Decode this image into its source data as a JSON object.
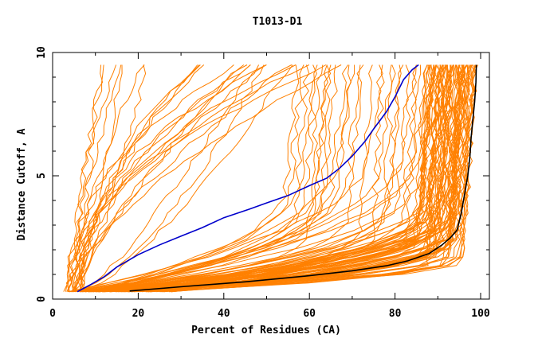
{
  "chart_data": {
    "type": "line",
    "title": "T1013-D1",
    "xlabel": "Percent of Residues (CA)",
    "ylabel": "Distance Cutoff, A",
    "xlim": [
      0,
      100
    ],
    "ylim": [
      0,
      10
    ],
    "x_ticks": [
      0,
      20,
      40,
      60,
      80,
      100
    ],
    "y_ticks": [
      0,
      5,
      10
    ],
    "x_tick_labels": [
      "0",
      "20",
      "40",
      "60",
      "80",
      "100"
    ],
    "y_tick_labels": [
      "0",
      "5",
      "10"
    ],
    "grid": false,
    "bundle": {
      "name": "all models",
      "color": "#ff8000",
      "count": 130,
      "y_min": 0.3,
      "y_max": 9.5
    },
    "highlight_series": [
      {
        "name": "blue model",
        "color": "#0000cc",
        "points": [
          [
            5.8,
            0.3
          ],
          [
            9,
            0.6
          ],
          [
            12,
            0.9
          ],
          [
            15,
            1.3
          ],
          [
            20,
            1.8
          ],
          [
            25,
            2.2
          ],
          [
            30,
            2.55
          ],
          [
            35,
            2.9
          ],
          [
            40,
            3.3
          ],
          [
            46,
            3.65
          ],
          [
            50,
            3.9
          ],
          [
            55,
            4.2
          ],
          [
            60,
            4.6
          ],
          [
            64,
            4.9
          ],
          [
            67,
            5.3
          ],
          [
            70,
            5.8
          ],
          [
            73,
            6.4
          ],
          [
            75,
            6.9
          ],
          [
            78,
            7.6
          ],
          [
            80,
            8.2
          ],
          [
            82,
            8.9
          ],
          [
            84,
            9.3
          ],
          [
            85.5,
            9.5
          ]
        ]
      },
      {
        "name": "black model",
        "color": "#000000",
        "points": [
          [
            18,
            0.33
          ],
          [
            30,
            0.5
          ],
          [
            45,
            0.7
          ],
          [
            60,
            0.95
          ],
          [
            70,
            1.15
          ],
          [
            78,
            1.35
          ],
          [
            83,
            1.55
          ],
          [
            88,
            1.85
          ],
          [
            91,
            2.2
          ],
          [
            93,
            2.5
          ],
          [
            94.5,
            2.8
          ],
          [
            95.5,
            3.5
          ],
          [
            96.3,
            4.3
          ],
          [
            97,
            5.0
          ],
          [
            97.5,
            5.8
          ],
          [
            97.8,
            6.6
          ],
          [
            98.2,
            7.3
          ],
          [
            98.6,
            8.0
          ],
          [
            98.9,
            8.8
          ],
          [
            99,
            9.5
          ]
        ]
      }
    ]
  }
}
